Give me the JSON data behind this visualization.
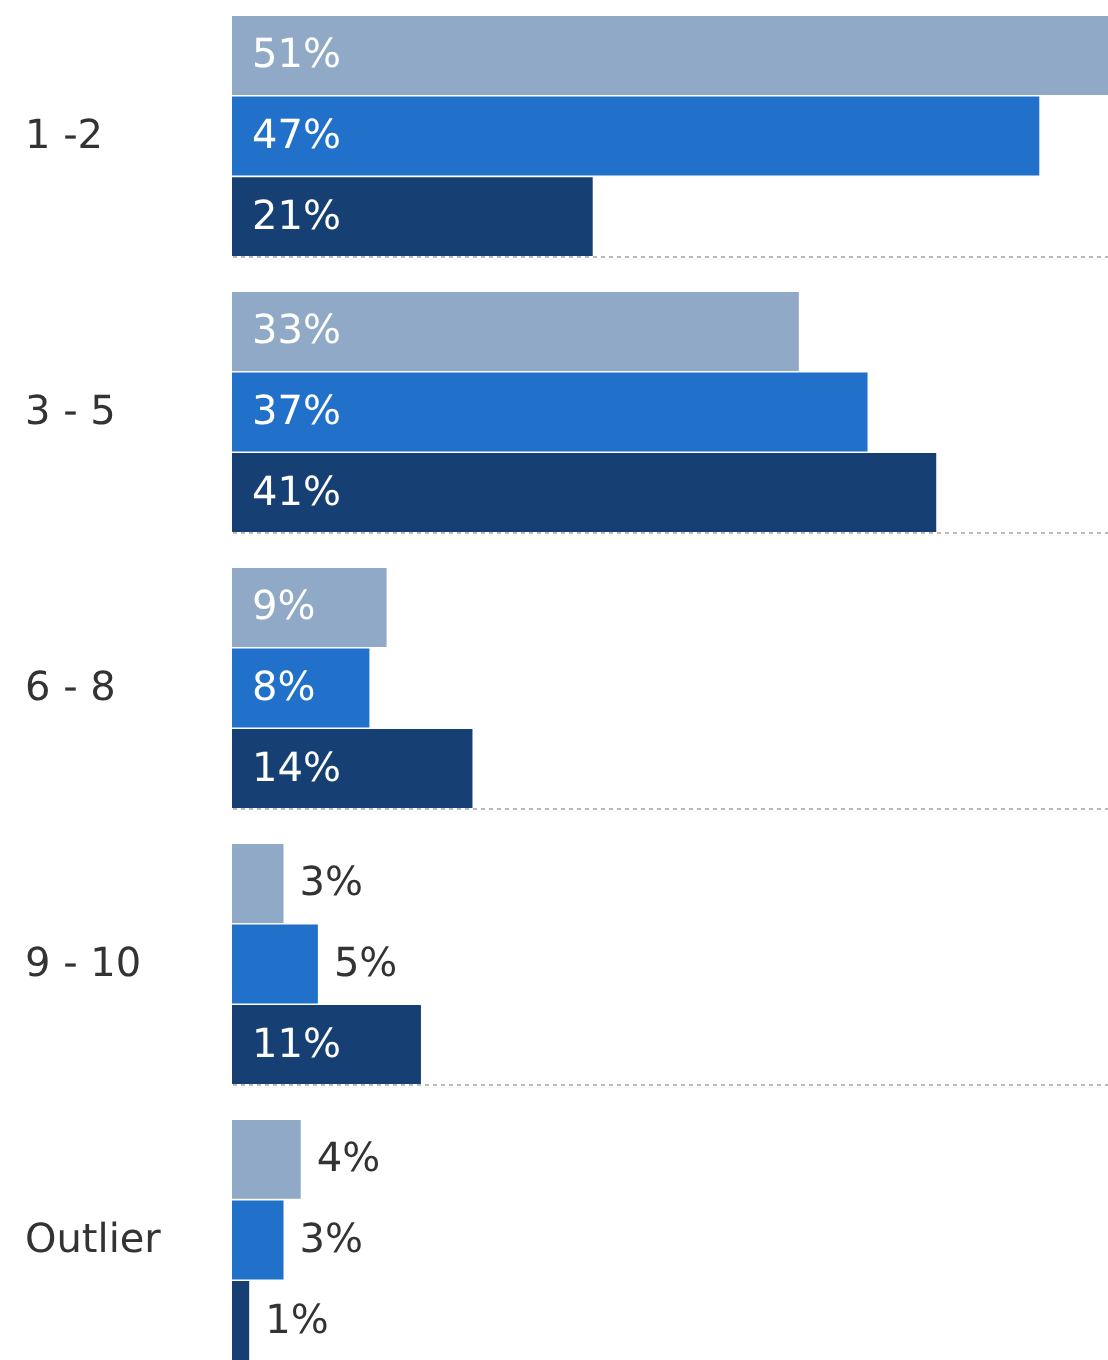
{
  "chart_data": {
    "type": "bar",
    "orientation": "horizontal",
    "categories": [
      "1 -2",
      "3 - 5",
      "6 - 8",
      "9 - 10",
      "Outlier"
    ],
    "series": [
      {
        "color": "#8fa9c6",
        "values": [
          51,
          33,
          9,
          3,
          4
        ],
        "value_labels": [
          "51%",
          "33%",
          "9%",
          "3%",
          "4%"
        ]
      },
      {
        "color": "#2170c9",
        "values": [
          47,
          37,
          8,
          5,
          3
        ],
        "value_labels": [
          "47%",
          "37%",
          "8%",
          "5%",
          "3%"
        ]
      },
      {
        "color": "#163f73",
        "values": [
          21,
          41,
          14,
          11,
          1
        ],
        "value_labels": [
          "21%",
          "41%",
          "14%",
          "11%",
          "1%"
        ]
      }
    ],
    "grid": "y",
    "legend": false
  }
}
